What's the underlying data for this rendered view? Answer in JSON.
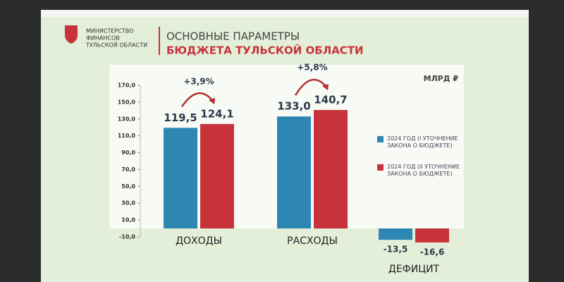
{
  "chart_data": {
    "type": "bar",
    "organization": [
      "МИНИСТЕРСТВО",
      "ФИНАНСОВ",
      "ТУЛЬСКОЙ ОБЛАСТИ"
    ],
    "title": "ОСНОВНЫЕ ПАРАМЕТРЫ",
    "subtitle": "БЮДЖЕТА ТУЛЬСКОЙ ОБЛАСТИ",
    "unit": "МЛРД ₽",
    "annotations": [
      "+3,9%",
      "+5,8%"
    ],
    "categories": [
      "ДОХОДЫ",
      "РАСХОДЫ",
      "ДЕФИЦИТ"
    ],
    "series": [
      {
        "name": "2024 ГОД (I УТОЧНЕНИЕ ЗАКОНА О БЮДЖЕТЕ)",
        "color": "#2e86b3",
        "values": [
          119.5,
          133.0,
          -13.5
        ],
        "value_labels": [
          "119,5",
          "133,0",
          "-13,5"
        ]
      },
      {
        "name": "2024 ГОД (II УТОЧНЕНИЕ ЗАКОНА О БЮДЖЕТЕ)",
        "color": "#c8333b",
        "values": [
          124.1,
          140.7,
          -16.6
        ],
        "value_labels": [
          "124,1",
          "140,7",
          "-16,6"
        ]
      }
    ],
    "ylim": [
      -10,
      170
    ],
    "yticks": [
      {
        "value": -10,
        "label": "-10,0"
      },
      {
        "value": 10,
        "label": "10,0"
      },
      {
        "value": 30,
        "label": "30,0"
      },
      {
        "value": 50,
        "label": "50,0"
      },
      {
        "value": 70,
        "label": "70,0"
      },
      {
        "value": 90,
        "label": "90,0"
      },
      {
        "value": 110,
        "label": "110,0"
      },
      {
        "value": 130,
        "label": "130,0"
      },
      {
        "value": 150,
        "label": "150,0"
      },
      {
        "value": 170,
        "label": "170,0"
      }
    ]
  }
}
